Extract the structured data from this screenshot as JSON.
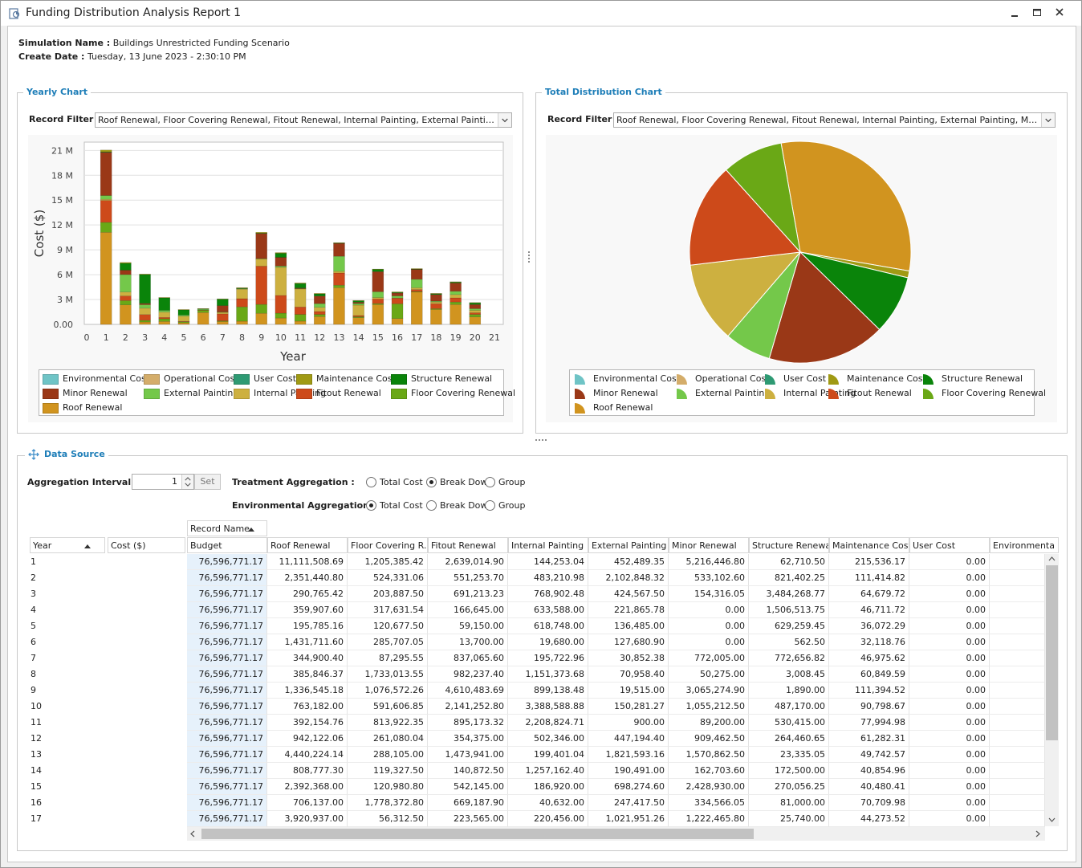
{
  "window": {
    "title": "Funding Distribution Analysis Report 1"
  },
  "info": {
    "simulation_label": "Simulation Name :",
    "simulation_value": "Buildings Unrestricted Funding Scenario",
    "date_label": "Create Date :",
    "date_value": "Tuesday, 13 June 2023 - 2:30:10 PM"
  },
  "yearly_chart": {
    "title": "Yearly Chart",
    "filter_label": "Record Filter :",
    "filter_value": "Roof Renewal, Floor Covering Renewal, Fitout Renewal, Internal Painting, External Painting, Minor R..."
  },
  "total_chart": {
    "title": "Total Distribution Chart",
    "filter_label": "Record Filter :",
    "filter_value": "Roof Renewal, Floor Covering Renewal, Fitout Renewal, Internal Painting, External Painting, Minor Renewal..."
  },
  "legend": [
    {
      "name": "Environmental Cost",
      "color": "#6fc4c6"
    },
    {
      "name": "Operational Cost",
      "color": "#d4ad6a"
    },
    {
      "name": "User Cost",
      "color": "#2e9a73"
    },
    {
      "name": "Maintenance Cost",
      "color": "#a09a14"
    },
    {
      "name": "Structure  Renewal",
      "color": "#0a840a"
    },
    {
      "name": "Minor Renewal",
      "color": "#9a3817"
    },
    {
      "name": "External Painting",
      "color": "#74c84a"
    },
    {
      "name": "Internal Painting",
      "color": "#cdb040"
    },
    {
      "name": "Fitout Renewal",
      "color": "#cd4a1a"
    },
    {
      "name": "Floor Covering Renewal",
      "color": "#6aa816"
    },
    {
      "name": "Roof Renewal",
      "color": "#d1941f"
    }
  ],
  "chart_data": [
    {
      "type": "bar",
      "stacked": true,
      "title": "",
      "xlabel": "Year",
      "ylabel": "Cost ($)",
      "categories": [
        "0",
        "1",
        "2",
        "3",
        "4",
        "5",
        "6",
        "7",
        "8",
        "9",
        "10",
        "11",
        "12",
        "13",
        "14",
        "15",
        "16",
        "17",
        "18",
        "19",
        "20",
        "21"
      ],
      "yticks": [
        "0.00",
        "3 M",
        "6 M",
        "9 M",
        "12 M",
        "15 M",
        "18 M",
        "21 M"
      ],
      "ylim": [
        0,
        22000000
      ],
      "grid": true,
      "legend_position": "bottom",
      "series": [
        {
          "name": "Roof Renewal",
          "values": [
            0,
            11111508.69,
            2351440.8,
            290765.42,
            359907.6,
            195785.16,
            1431711.6,
            344900.4,
            385846.37,
            1336545.18,
            763182.0,
            392154.76,
            942122.06,
            4440224.14,
            808777.3,
            2392368.0,
            706137.0,
            3920937.0,
            1800000,
            2400000,
            900000,
            0
          ]
        },
        {
          "name": "Floor Covering Renewal",
          "values": [
            0,
            1205385.42,
            524331.06,
            203887.5,
            317631.54,
            120677.5,
            285707.05,
            87295.55,
            1733013.55,
            1076572.26,
            591606.85,
            813922.35,
            261080.04,
            288105.0,
            119327.5,
            120980.8,
            1778372.8,
            56312.5,
            100000,
            300000,
            300000,
            0
          ]
        },
        {
          "name": "Fitout Renewal",
          "values": [
            0,
            2639014.9,
            551253.7,
            691213.23,
            166645.0,
            59150.0,
            13700.0,
            837065.6,
            982237.4,
            4610483.69,
            2141252.8,
            895173.32,
            354375.0,
            1473941.0,
            140872.5,
            542145.0,
            669187.9,
            223565.0,
            600000,
            500000,
            200000,
            0
          ]
        },
        {
          "name": "Internal Painting",
          "values": [
            0,
            144253.04,
            483210.98,
            768902.48,
            633588.0,
            618748.0,
            19680.0,
            195722.96,
            1151373.68,
            899138.48,
            3388588.88,
            2208824.71,
            502346.0,
            199401.04,
            1257162.4,
            186920.0,
            40632.0,
            220456.0,
            200000,
            400000,
            300000,
            0
          ]
        },
        {
          "name": "External Painting",
          "values": [
            0,
            452489.35,
            2102848.32,
            424567.5,
            221865.78,
            136485.0,
            127680.9,
            30852.38,
            70958.4,
            19515.0,
            150281.27,
            900.0,
            447194.4,
            1821593.16,
            190491.0,
            698274.6,
            247417.5,
            1021951.26,
            100000,
            400000,
            200000,
            0
          ]
        },
        {
          "name": "Minor Renewal",
          "values": [
            0,
            5216446.8,
            533102.6,
            154316.05,
            0.0,
            0.0,
            0.0,
            772005.0,
            50275.0,
            3065274.9,
            1055212.5,
            89200.0,
            909462.5,
            1570862.5,
            162703.6,
            2428930.0,
            334566.05,
            1222465.8,
            800000,
            1000000,
            500000,
            0
          ]
        },
        {
          "name": "Structure  Renewal",
          "values": [
            0,
            62710.5,
            821402.25,
            3484268.77,
            1506513.75,
            629259.45,
            562.5,
            772656.82,
            3008.45,
            1890.0,
            487170.0,
            530415.0,
            264460.65,
            23335.05,
            172500.0,
            270056.25,
            81000.0,
            25740.0,
            100000,
            100000,
            200000,
            0
          ]
        },
        {
          "name": "Maintenance Cost",
          "values": [
            0,
            215536.17,
            111414.82,
            64679.72,
            46711.72,
            36072.29,
            32118.76,
            46975.62,
            60849.59,
            111394.52,
            90798.67,
            77994.98,
            61282.31,
            49742.57,
            40854.96,
            40480.41,
            70709.98,
            44273.52,
            50000,
            50000,
            40000,
            0
          ]
        },
        {
          "name": "User Cost",
          "values": [
            0,
            0,
            0,
            0,
            0,
            0,
            0,
            0,
            0,
            0,
            0,
            0,
            0,
            0,
            0,
            0,
            0,
            0,
            0,
            0,
            0,
            0
          ]
        },
        {
          "name": "Operational Cost",
          "values": [
            0,
            0,
            0,
            0,
            0,
            0,
            0,
            0,
            0,
            0,
            0,
            0,
            0,
            0,
            0,
            0,
            0,
            0,
            0,
            0,
            0,
            0
          ]
        },
        {
          "name": "Environmental Cost",
          "values": [
            0,
            0,
            0,
            0,
            0,
            0,
            0,
            0,
            0,
            0,
            0,
            0,
            0,
            0,
            0,
            0,
            0,
            0,
            0,
            0,
            0,
            0
          ]
        }
      ]
    },
    {
      "type": "pie",
      "title": "",
      "legend_position": "bottom",
      "slices": [
        {
          "name": "Roof Renewal",
          "value": 30.5
        },
        {
          "name": "Maintenance Cost",
          "value": 1.0
        },
        {
          "name": "Structure  Renewal",
          "value": 8.6
        },
        {
          "name": "Minor Renewal",
          "value": 17.2
        },
        {
          "name": "External Painting",
          "value": 6.8
        },
        {
          "name": "Internal Painting",
          "value": 11.8
        },
        {
          "name": "Fitout Renewal",
          "value": 15.2
        },
        {
          "name": "Floor Covering Renewal",
          "value": 8.9
        }
      ]
    }
  ],
  "data_source": {
    "title": "Data Source",
    "aggregation_interval_label": "Aggregation Interval :",
    "aggregation_interval_value": "1",
    "set_label": "Set",
    "treatment_label": "Treatment Aggregation :",
    "environmental_label": "Environmental Aggregation:",
    "radio_total": "Total Cost",
    "radio_breakdown": "Break Down",
    "radio_group": "Group",
    "treatment_selected": "Break Down",
    "environmental_selected": "Total Cost"
  },
  "grid": {
    "record_name_header": "Record Name",
    "row_field_year": "Year",
    "row_field_cost": "Cost ($)",
    "columns": [
      "Budget",
      "Roof Renewal",
      "Floor Covering R...",
      "Fitout Renewal",
      "Internal Painting",
      "External Painting",
      "Minor Renewal",
      "Structure  Renewal",
      "Maintenance Cost",
      "User Cost",
      "Environmenta"
    ],
    "rows": [
      {
        "year": "1",
        "cells": [
          "76,596,771.17",
          "11,111,508.69",
          "1,205,385.42",
          "2,639,014.90",
          "144,253.04",
          "452,489.35",
          "5,216,446.80",
          "62,710.50",
          "215,536.17",
          "0.00",
          ""
        ]
      },
      {
        "year": "2",
        "cells": [
          "76,596,771.17",
          "2,351,440.80",
          "524,331.06",
          "551,253.70",
          "483,210.98",
          "2,102,848.32",
          "533,102.60",
          "821,402.25",
          "111,414.82",
          "0.00",
          ""
        ]
      },
      {
        "year": "3",
        "cells": [
          "76,596,771.17",
          "290,765.42",
          "203,887.50",
          "691,213.23",
          "768,902.48",
          "424,567.50",
          "154,316.05",
          "3,484,268.77",
          "64,679.72",
          "0.00",
          ""
        ]
      },
      {
        "year": "4",
        "cells": [
          "76,596,771.17",
          "359,907.60",
          "317,631.54",
          "166,645.00",
          "633,588.00",
          "221,865.78",
          "0.00",
          "1,506,513.75",
          "46,711.72",
          "0.00",
          ""
        ]
      },
      {
        "year": "5",
        "cells": [
          "76,596,771.17",
          "195,785.16",
          "120,677.50",
          "59,150.00",
          "618,748.00",
          "136,485.00",
          "0.00",
          "629,259.45",
          "36,072.29",
          "0.00",
          ""
        ]
      },
      {
        "year": "6",
        "cells": [
          "76,596,771.17",
          "1,431,711.60",
          "285,707.05",
          "13,700.00",
          "19,680.00",
          "127,680.90",
          "0.00",
          "562.50",
          "32,118.76",
          "0.00",
          ""
        ]
      },
      {
        "year": "7",
        "cells": [
          "76,596,771.17",
          "344,900.40",
          "87,295.55",
          "837,065.60",
          "195,722.96",
          "30,852.38",
          "772,005.00",
          "772,656.82",
          "46,975.62",
          "0.00",
          ""
        ]
      },
      {
        "year": "8",
        "cells": [
          "76,596,771.17",
          "385,846.37",
          "1,733,013.55",
          "982,237.40",
          "1,151,373.68",
          "70,958.40",
          "50,275.00",
          "3,008.45",
          "60,849.59",
          "0.00",
          ""
        ]
      },
      {
        "year": "9",
        "cells": [
          "76,596,771.17",
          "1,336,545.18",
          "1,076,572.26",
          "4,610,483.69",
          "899,138.48",
          "19,515.00",
          "3,065,274.90",
          "1,890.00",
          "111,394.52",
          "0.00",
          ""
        ]
      },
      {
        "year": "10",
        "cells": [
          "76,596,771.17",
          "763,182.00",
          "591,606.85",
          "2,141,252.80",
          "3,388,588.88",
          "150,281.27",
          "1,055,212.50",
          "487,170.00",
          "90,798.67",
          "0.00",
          ""
        ]
      },
      {
        "year": "11",
        "cells": [
          "76,596,771.17",
          "392,154.76",
          "813,922.35",
          "895,173.32",
          "2,208,824.71",
          "900.00",
          "89,200.00",
          "530,415.00",
          "77,994.98",
          "0.00",
          ""
        ]
      },
      {
        "year": "12",
        "cells": [
          "76,596,771.17",
          "942,122.06",
          "261,080.04",
          "354,375.00",
          "502,346.00",
          "447,194.40",
          "909,462.50",
          "264,460.65",
          "61,282.31",
          "0.00",
          ""
        ]
      },
      {
        "year": "13",
        "cells": [
          "76,596,771.17",
          "4,440,224.14",
          "288,105.00",
          "1,473,941.00",
          "199,401.04",
          "1,821,593.16",
          "1,570,862.50",
          "23,335.05",
          "49,742.57",
          "0.00",
          ""
        ]
      },
      {
        "year": "14",
        "cells": [
          "76,596,771.17",
          "808,777.30",
          "119,327.50",
          "140,872.50",
          "1,257,162.40",
          "190,491.00",
          "162,703.60",
          "172,500.00",
          "40,854.96",
          "0.00",
          ""
        ]
      },
      {
        "year": "15",
        "cells": [
          "76,596,771.17",
          "2,392,368.00",
          "120,980.80",
          "542,145.00",
          "186,920.00",
          "698,274.60",
          "2,428,930.00",
          "270,056.25",
          "40,480.41",
          "0.00",
          ""
        ]
      },
      {
        "year": "16",
        "cells": [
          "76,596,771.17",
          "706,137.00",
          "1,778,372.80",
          "669,187.90",
          "40,632.00",
          "247,417.50",
          "334,566.05",
          "81,000.00",
          "70,709.98",
          "0.00",
          ""
        ]
      },
      {
        "year": "17",
        "cells": [
          "76,596,771.17",
          "3,920,937.00",
          "56,312.50",
          "223,565.00",
          "220,456.00",
          "1,021,951.26",
          "1,222,465.80",
          "25,740.00",
          "44,273.52",
          "0.00",
          ""
        ]
      }
    ]
  }
}
